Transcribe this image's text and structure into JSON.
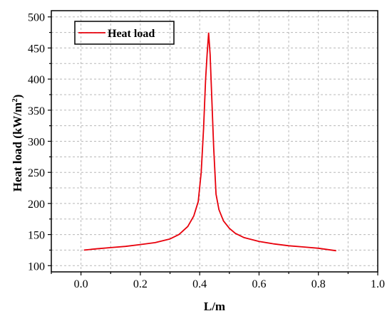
{
  "chart_data": {
    "type": "line",
    "title": "",
    "xlabel": "L/m",
    "ylabel_main": "Heat load (kW/m",
    "ylabel_sup": "2",
    "ylabel_end": ")",
    "xlim": [
      -0.1,
      1.0
    ],
    "ylim": [
      90,
      510
    ],
    "xticks": [
      0.0,
      0.2,
      0.4,
      0.6,
      0.8,
      1.0
    ],
    "xtick_labels": [
      "0.0",
      "0.2",
      "0.4",
      "0.6",
      "0.8",
      "1.0"
    ],
    "yticks": [
      100,
      150,
      200,
      250,
      300,
      350,
      400,
      450,
      500
    ],
    "ytick_labels": [
      "100",
      "150",
      "200",
      "250",
      "300",
      "350",
      "400",
      "450",
      "500"
    ],
    "xgrid": [
      -0.1,
      0.0,
      0.1,
      0.2,
      0.3,
      0.4,
      0.5,
      0.6,
      0.7,
      0.8,
      0.9
    ],
    "ygrid": [
      100,
      125,
      150,
      175,
      200,
      225,
      250,
      275,
      300,
      325,
      350,
      375,
      400,
      425,
      450,
      475,
      500
    ],
    "grid": true,
    "legend_position": "top-left",
    "series": [
      {
        "name": "Heat load",
        "color": "#e8000b",
        "x": [
          0.01,
          0.05,
          0.1,
          0.15,
          0.2,
          0.25,
          0.3,
          0.33,
          0.36,
          0.38,
          0.395,
          0.405,
          0.413,
          0.42,
          0.425,
          0.43,
          0.435,
          0.44,
          0.447,
          0.455,
          0.465,
          0.48,
          0.5,
          0.52,
          0.55,
          0.6,
          0.65,
          0.7,
          0.75,
          0.8,
          0.86
        ],
        "y": [
          125,
          127,
          129,
          131,
          134,
          137,
          143,
          150,
          163,
          180,
          203,
          250,
          320,
          400,
          440,
          474,
          440,
          380,
          290,
          215,
          190,
          172,
          160,
          152,
          145,
          139,
          135,
          132,
          130,
          128,
          124
        ]
      }
    ]
  }
}
